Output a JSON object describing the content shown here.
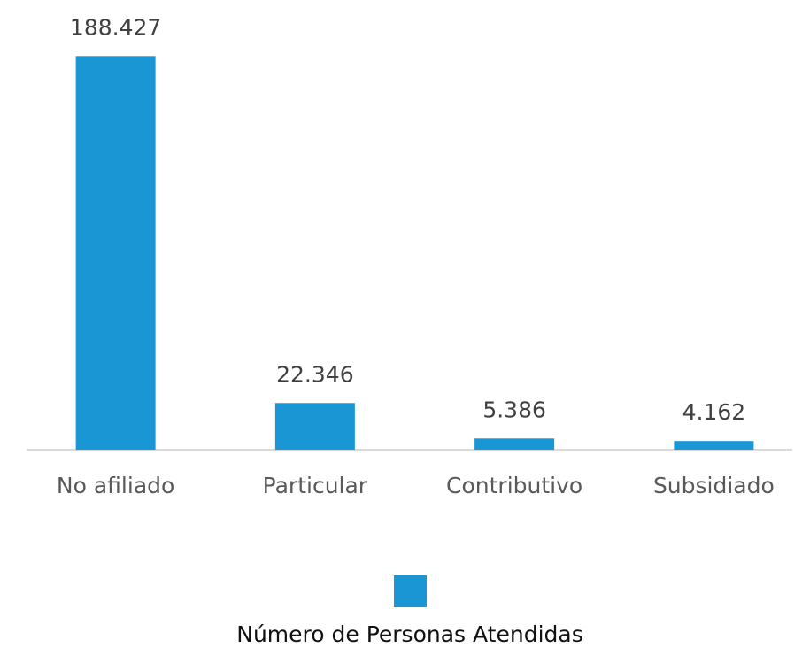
{
  "chart_data": {
    "type": "bar",
    "categories": [
      "No afiliado",
      "Particular",
      "Contributivo",
      "Subsidiado"
    ],
    "series": [
      {
        "name": "Número de Personas Atendidas",
        "color": "#1a96d5",
        "values": [
          188427,
          22346,
          5386,
          4162
        ],
        "value_labels": [
          "188.427",
          "22.346",
          "5.386",
          "4.162"
        ]
      }
    ],
    "ylim": [
      0,
      200000
    ],
    "legend": "bottom"
  }
}
